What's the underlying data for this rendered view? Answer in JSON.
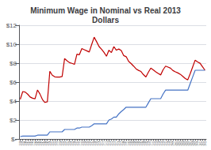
{
  "chart_data": {
    "type": "line",
    "title": "Minimum Wage in Nominal vs Real 2013\nDollars",
    "x": [
      1938,
      1939,
      1940,
      1941,
      1942,
      1943,
      1944,
      1945,
      1946,
      1947,
      1948,
      1949,
      1950,
      1951,
      1952,
      1953,
      1954,
      1955,
      1956,
      1957,
      1958,
      1959,
      1960,
      1961,
      1962,
      1963,
      1964,
      1965,
      1966,
      1967,
      1968,
      1969,
      1970,
      1971,
      1972,
      1973,
      1974,
      1975,
      1976,
      1977,
      1978,
      1979,
      1980,
      1981,
      1982,
      1983,
      1984,
      1985,
      1986,
      1987,
      1988,
      1989,
      1990,
      1991,
      1992,
      1993,
      1994,
      1995,
      1996,
      1997,
      1998,
      1999,
      2000,
      2001,
      2002,
      2003,
      2004,
      2005,
      2006,
      2007,
      2008,
      2009,
      2010,
      2011,
      2012,
      2013
    ],
    "series": [
      {
        "color": "#C00000",
        "values": [
          4.19,
          5.0,
          4.95,
          4.73,
          4.43,
          4.3,
          4.24,
          5.17,
          4.74,
          4.16,
          3.85,
          3.93,
          7.14,
          6.73,
          6.56,
          6.53,
          6.53,
          6.59,
          8.49,
          8.25,
          8.05,
          7.98,
          7.87,
          8.95,
          8.89,
          9.54,
          9.42,
          9.3,
          9.18,
          9.98,
          10.74,
          10.26,
          9.75,
          9.47,
          9.14,
          8.73,
          9.37,
          9.12,
          9.75,
          9.37,
          9.49,
          9.33,
          8.8,
          8.68,
          8.19,
          7.96,
          7.69,
          7.4,
          7.24,
          7.12,
          6.79,
          6.54,
          7.04,
          7.48,
          7.29,
          7.09,
          6.92,
          6.76,
          7.31,
          7.69,
          7.58,
          7.47,
          7.22,
          7.09,
          6.97,
          6.82,
          6.6,
          6.38,
          6.24,
          6.89,
          7.6,
          8.32,
          8.13,
          7.99,
          7.62,
          7.25
        ]
      },
      {
        "color": "#4472C4",
        "values": [
          0.25,
          0.3,
          0.3,
          0.3,
          0.3,
          0.3,
          0.3,
          0.4,
          0.4,
          0.4,
          0.4,
          0.4,
          0.75,
          0.75,
          0.75,
          0.75,
          0.75,
          0.75,
          1.0,
          1.0,
          1.0,
          1.0,
          1.0,
          1.15,
          1.15,
          1.25,
          1.25,
          1.25,
          1.25,
          1.4,
          1.6,
          1.6,
          1.6,
          1.6,
          1.6,
          1.6,
          2.0,
          2.1,
          2.3,
          2.3,
          2.65,
          2.9,
          3.1,
          3.35,
          3.35,
          3.35,
          3.35,
          3.35,
          3.35,
          3.35,
          3.35,
          3.35,
          3.8,
          4.25,
          4.25,
          4.25,
          4.25,
          4.25,
          4.75,
          5.15,
          5.15,
          5.15,
          5.15,
          5.15,
          5.15,
          5.15,
          5.15,
          5.15,
          5.15,
          5.85,
          6.55,
          7.25,
          7.25,
          7.25,
          7.25,
          7.25
        ]
      }
    ],
    "xlim": [
      1937.5,
      2013.5
    ],
    "xticks": [
      1938,
      1939,
      1940,
      1941,
      1942,
      1943,
      1944,
      1945,
      1946,
      1947,
      1948,
      1949,
      1950,
      1951,
      1952,
      1953,
      1954,
      1955,
      1956,
      1957,
      1958,
      1959,
      1960,
      1961,
      1962,
      1963,
      1964,
      1965,
      1966,
      1967,
      1968,
      1969,
      1970,
      1971,
      1972,
      1973,
      1974,
      1975,
      1976,
      1977,
      1978,
      1979,
      1980,
      1981,
      1982,
      1983,
      1984,
      1985,
      1986,
      1987,
      1988,
      1989,
      1990,
      1991,
      1992,
      1993,
      1994,
      1995,
      1996,
      1997,
      1998,
      1999,
      2000,
      2001,
      2002,
      2003,
      2004,
      2005,
      2006,
      2007,
      2008,
      2009,
      2010,
      2011,
      2012,
      2013
    ],
    "ylim": [
      0,
      12
    ],
    "yticks": [
      {
        "value": 0,
        "label": "$-"
      },
      {
        "value": 2,
        "label": "$2"
      },
      {
        "value": 4,
        "label": "$4"
      },
      {
        "value": 6,
        "label": "$6"
      },
      {
        "value": 8,
        "label": "$8"
      },
      {
        "value": 10,
        "label": "$10"
      },
      {
        "value": 12,
        "label": "$12"
      }
    ],
    "grid": true
  }
}
